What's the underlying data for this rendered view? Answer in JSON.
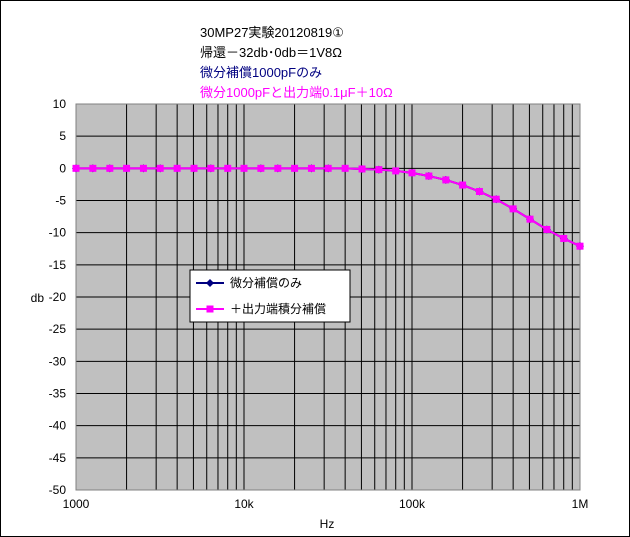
{
  "chart_data": {
    "type": "line",
    "title_lines": [
      {
        "text": "30MP27実験20120819①",
        "color": "#000000"
      },
      {
        "text": "帰還－32db･0db＝1V8Ω",
        "color": "#000000"
      },
      {
        "text": "微分補償1000pFのみ",
        "color": "#000080"
      },
      {
        "text": "微分1000pFと出力端0.1μF＋10Ω",
        "color": "#ff00ff"
      }
    ],
    "xlabel": "Hz",
    "ylabel": "db",
    "xscale": "log",
    "xlim": [
      1000,
      1000000
    ],
    "ylim": [
      -50,
      10
    ],
    "x_ticks": [
      {
        "value": 1000,
        "label": "1000"
      },
      {
        "value": 10000,
        "label": "10k"
      },
      {
        "value": 100000,
        "label": "100k"
      },
      {
        "value": 1000000,
        "label": "1M"
      }
    ],
    "y_ticks": [
      10,
      5,
      0,
      -5,
      -10,
      -15,
      -20,
      -25,
      -30,
      -35,
      -40,
      -45,
      -50
    ],
    "grid": true,
    "plot_background": "#c0c0c0",
    "legend_position": "center-left",
    "series": [
      {
        "name": "微分補償のみ",
        "color": "#000080",
        "marker": "diamond",
        "x": [
          1000,
          1260,
          1590,
          2000,
          2520,
          3170,
          4000,
          5040,
          6350,
          8000,
          10000,
          12600,
          15900,
          20000,
          25200,
          31700,
          40000,
          50400,
          63500,
          80000,
          100000,
          126000,
          159000,
          200000,
          252000,
          317000,
          400000,
          504000,
          635000,
          800000,
          1000000
        ],
        "y": [
          0,
          0,
          0,
          0,
          0,
          0,
          0,
          0,
          0,
          0,
          0,
          0,
          0,
          0,
          0,
          0,
          0,
          -0.1,
          -0.2,
          -0.4,
          -0.7,
          -1.2,
          -1.8,
          -2.6,
          -3.6,
          -4.8,
          -6.3,
          -7.9,
          -9.5,
          -10.9,
          -12.1
        ]
      },
      {
        "name": "＋出力端積分補償",
        "color": "#ff00ff",
        "marker": "square",
        "x": [
          1000,
          1260,
          1590,
          2000,
          2520,
          3170,
          4000,
          5040,
          6350,
          8000,
          10000,
          12600,
          15900,
          20000,
          25200,
          31700,
          40000,
          50400,
          63500,
          80000,
          100000,
          126000,
          159000,
          200000,
          252000,
          317000,
          400000,
          504000,
          635000,
          800000,
          1000000
        ],
        "y": [
          0,
          0,
          0,
          0,
          0,
          0,
          0,
          0,
          0,
          0,
          0,
          0,
          0,
          0,
          0,
          0,
          0,
          -0.1,
          -0.2,
          -0.4,
          -0.7,
          -1.2,
          -1.8,
          -2.6,
          -3.6,
          -4.8,
          -6.3,
          -7.9,
          -9.5,
          -10.9,
          -12.1
        ]
      }
    ]
  }
}
